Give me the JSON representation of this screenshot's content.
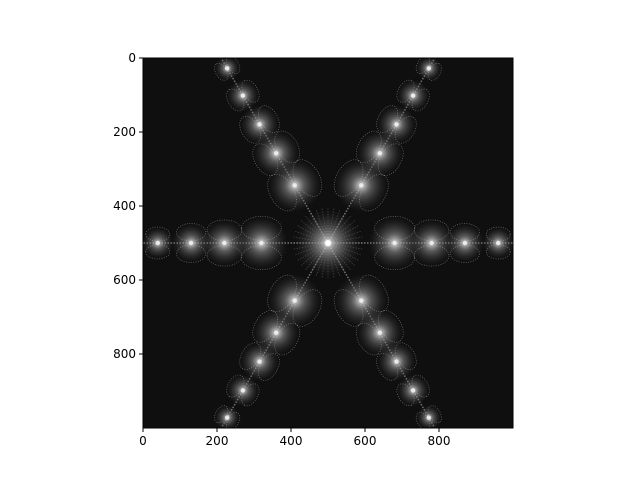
{
  "chart_data": {
    "type": "heatmap",
    "title": "",
    "xlabel": "",
    "ylabel": "",
    "xlim": [
      0,
      1000
    ],
    "ylim": [
      1000,
      0
    ],
    "x_ticks": [
      0,
      200,
      400,
      600,
      800
    ],
    "y_ticks": [
      0,
      200,
      400,
      600,
      800
    ],
    "x_tick_labels": [
      "0",
      "200",
      "400",
      "600",
      "800"
    ],
    "y_tick_labels": [
      "0",
      "200",
      "400",
      "600",
      "800"
    ],
    "colormap": "gray",
    "grid": false,
    "legend": "none",
    "image_description_values": {
      "center": [
        500,
        500
      ],
      "arm_angles_deg": [
        -60,
        0,
        60,
        120,
        180,
        240
      ],
      "arm_bulb_distances": [
        180,
        280,
        370,
        460,
        545
      ]
    }
  },
  "colors": {
    "background": "#0f0f0f",
    "filament": "#bdbdbd",
    "axis": "#000000"
  }
}
